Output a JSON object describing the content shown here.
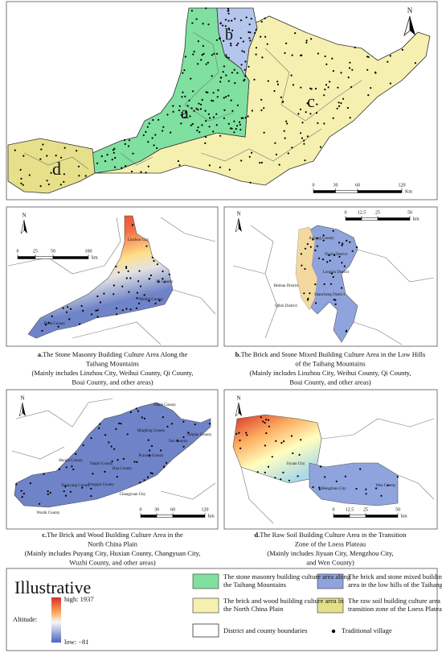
{
  "main_map": {
    "north": "N",
    "region_labels": [
      "a",
      "b",
      "c",
      "d"
    ],
    "scale": {
      "ticks": [
        0,
        30,
        60,
        120
      ],
      "unit": "Km"
    }
  },
  "panels": [
    {
      "north": "N",
      "scale": {
        "ticks": [
          0,
          25,
          50,
          100
        ],
        "unit": "km"
      },
      "places": [
        "Linzhou City",
        "Qi County",
        "Weihui County",
        "Bo'ai County"
      ],
      "caption_label": "a.",
      "caption": [
        "The Stone Masonry Building Culture Area Along the",
        "Taihang Mountains",
        "(Mainly includes Linzhou City, Weihui County, Qi County,",
        "Boai County, and other areas)"
      ]
    },
    {
      "north": "N",
      "scale": {
        "ticks": [
          0,
          12.5,
          25,
          50
        ],
        "unit": "km"
      },
      "places": [
        "Anyang County",
        "Yindu District",
        "Long'an District",
        "Heshan District",
        "Qibin District",
        "Shancheng District"
      ],
      "caption_label": "b.",
      "caption": [
        "The Brick and Stone Mixed Building Culture Area in the Low Hills",
        "of the Taihang Mountains",
        "(Mainly includes Linzhou City, Weihui County, Qi County,",
        "Boai County, and other areas)"
      ]
    },
    {
      "north": "N",
      "scale": {
        "ticks": [
          0,
          30,
          60,
          120
        ],
        "unit": "km"
      },
      "places": [
        "Nanle County",
        "Qingfeng County",
        "Puyang County",
        "Fan County",
        "Taiqian County",
        "Hua County",
        "Changyuan City",
        "Fengqiu County",
        "Yuanyang County",
        "Wuzhi County",
        "Huojia County",
        "Yanjin County"
      ],
      "caption_label": "c.",
      "caption": [
        "The Brick and Wood Building Culture Area in the",
        "North China Plain",
        "(Mainly includes Puyang City, Huxian County, Changyuan City,",
        "Wuzhi County, and other areas)"
      ]
    },
    {
      "north": "N",
      "scale": {
        "ticks": [
          0,
          12.5,
          25,
          50
        ],
        "unit": "km"
      },
      "places": [
        "Jiyuan City",
        "Mengzhou City",
        "Wen County"
      ],
      "caption_label": "d.",
      "caption": [
        "The Raw Soil Building Culture Area in the Transition",
        "Zone of the Loess Plateau",
        "(Mainly includes Jiyuan City, Mengzhou City,",
        "and Wen County)"
      ]
    }
  ],
  "legend": {
    "title": "Illustrative",
    "altitude_label": "Altitude:",
    "high": "high: 1937",
    "low": "low: −81",
    "items": [
      {
        "text": [
          "The stone masonry building culture area along",
          "the Taihang Mountains"
        ]
      },
      {
        "text": [
          "The brick and stone mixed building culture",
          "area in the low hills of the Taihang Mountains"
        ]
      },
      {
        "text": [
          "The brick and wood building culture area in",
          "the North China Plain"
        ]
      },
      {
        "text": [
          "The raw soil building culture area in the",
          "transition zone of the Loess Plateau"
        ]
      }
    ],
    "boundaries": "District and county boundaries",
    "village": "Traditional village"
  }
}
